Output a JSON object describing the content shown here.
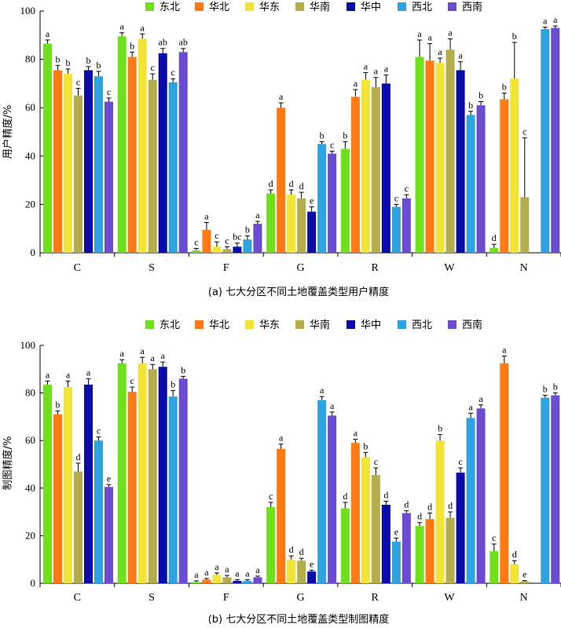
{
  "colors": [
    "#6fe11c",
    "#ff7a13",
    "#f2e436",
    "#b3ad4c",
    "#0b0ba8",
    "#2ea3e0",
    "#6b4bd0"
  ],
  "chart_data": [
    {
      "type": "bar",
      "title": "(a) 七大分区不同土地覆盖类型用户精度",
      "ylabel": "用户精度/%",
      "xlabel": "",
      "ylim": [
        0,
        100
      ],
      "yticks": [
        0,
        20,
        40,
        60,
        80,
        100
      ],
      "categories": [
        "C",
        "S",
        "F",
        "G",
        "R",
        "W",
        "N"
      ],
      "legend_position": "top",
      "series": [
        {
          "name": "东北",
          "values": [
            86.5,
            89.5,
            1,
            24.5,
            43,
            81,
            2
          ],
          "errors": [
            1.5,
            1.5,
            0.8,
            1.5,
            3,
            7,
            1.5
          ],
          "letters": [
            "a",
            "a",
            "c",
            "d",
            "b",
            "a",
            "d"
          ]
        },
        {
          "name": "华北",
          "values": [
            75.5,
            81,
            9.5,
            60,
            64.5,
            79.5,
            63.5
          ],
          "errors": [
            2,
            2,
            3,
            2,
            3,
            7,
            2.5
          ],
          "letters": [
            "b",
            "b",
            "a",
            "a",
            "a",
            "a",
            "b"
          ]
        },
        {
          "name": "华东",
          "values": [
            74,
            88.5,
            2.5,
            24,
            71.5,
            78.5,
            72
          ],
          "errors": [
            2,
            2,
            2,
            2,
            3,
            2,
            15
          ],
          "letters": [
            "b",
            "a",
            "c",
            "d",
            "a",
            "a",
            "b"
          ]
        },
        {
          "name": "华南",
          "values": [
            65,
            71.5,
            1.5,
            22.5,
            68.5,
            84,
            23
          ],
          "errors": [
            3,
            2.5,
            1,
            2.5,
            4,
            4.5,
            24.5
          ],
          "letters": [
            "c",
            "c",
            "c",
            "d",
            "a",
            "a",
            "c"
          ]
        },
        {
          "name": "华中",
          "values": [
            75.5,
            82.5,
            2.5,
            17,
            70,
            75.5,
            0
          ],
          "errors": [
            1.5,
            2,
            1.5,
            2,
            3.5,
            3.5,
            0
          ],
          "letters": [
            "b",
            "ab",
            "bc",
            "e",
            "a",
            "a",
            ""
          ]
        },
        {
          "name": "西北",
          "values": [
            73,
            70.5,
            5.5,
            45,
            19,
            57,
            92.5
          ],
          "errors": [
            2,
            1.5,
            1.5,
            1,
            1,
            1.5,
            0.8
          ],
          "letters": [
            "b",
            "c",
            "b",
            "b",
            "c",
            "b",
            "a"
          ]
        },
        {
          "name": "西南",
          "values": [
            62.5,
            83,
            12,
            41,
            22.5,
            61,
            93
          ],
          "errors": [
            1.5,
            1.5,
            1,
            1,
            1.5,
            1.5,
            0.8
          ],
          "letters": [
            "c",
            "ab",
            "a",
            "c",
            "c",
            "b",
            "a"
          ]
        }
      ]
    },
    {
      "type": "bar",
      "title": "(b) 七大分区不同土地覆盖类型制图精度",
      "ylabel": "制图精度/%",
      "xlabel": "",
      "ylim": [
        0,
        100
      ],
      "yticks": [
        0,
        20,
        40,
        60,
        80,
        100
      ],
      "categories": [
        "C",
        "S",
        "F",
        "G",
        "R",
        "W",
        "N"
      ],
      "legend_position": "top",
      "series": [
        {
          "name": "东北",
          "values": [
            83.5,
            92.5,
            0.5,
            32,
            31.5,
            24,
            13.5
          ],
          "errors": [
            1.5,
            1.5,
            0.5,
            2,
            2.5,
            1.5,
            3
          ],
          "letters": [
            "a",
            "a",
            "a",
            "c",
            "d",
            "d",
            "c"
          ]
        },
        {
          "name": "华北",
          "values": [
            71,
            80.5,
            1.5,
            56.5,
            59,
            27,
            92.5
          ],
          "errors": [
            1.5,
            2,
            0.5,
            2,
            1.5,
            2.5,
            3
          ],
          "letters": [
            "b",
            "c",
            "a",
            "a",
            "a",
            "d",
            "a"
          ]
        },
        {
          "name": "华东",
          "values": [
            82.5,
            92.5,
            3.5,
            10,
            53,
            60,
            8
          ],
          "errors": [
            2.5,
            2.5,
            0.8,
            1.5,
            2,
            2.5,
            1.5
          ],
          "letters": [
            "a",
            "a",
            "a",
            "d",
            "b",
            "b",
            "d"
          ]
        },
        {
          "name": "华南",
          "values": [
            47,
            90,
            2.5,
            9.5,
            45.5,
            27.5,
            0.8
          ],
          "errors": [
            3.5,
            2,
            0.8,
            1,
            3,
            2.5,
            0.3
          ],
          "letters": [
            "d",
            "a",
            "a",
            "d",
            "c",
            "d",
            "e"
          ]
        },
        {
          "name": "华中",
          "values": [
            83.5,
            91,
            1,
            5,
            33,
            46.5,
            0
          ],
          "errors": [
            2.5,
            2,
            0.5,
            0.5,
            1.5,
            2,
            0
          ],
          "letters": [
            "a",
            "a",
            "a",
            "e",
            "d",
            "c",
            ""
          ]
        },
        {
          "name": "西北",
          "values": [
            60,
            78.5,
            1,
            77,
            17.5,
            69.5,
            78
          ],
          "errors": [
            1.5,
            2.5,
            0.5,
            1.5,
            1.5,
            2,
            1
          ],
          "letters": [
            "c",
            "b",
            "a",
            "a",
            "e",
            "a",
            "b"
          ]
        },
        {
          "name": "西南",
          "values": [
            40.5,
            86,
            2.5,
            70.5,
            29.5,
            73.5,
            79
          ],
          "errors": [
            1,
            1,
            0.5,
            1.5,
            1,
            1.5,
            1
          ],
          "letters": [
            "e",
            "b",
            "a",
            "a",
            "d",
            "a",
            "b"
          ]
        }
      ]
    }
  ]
}
